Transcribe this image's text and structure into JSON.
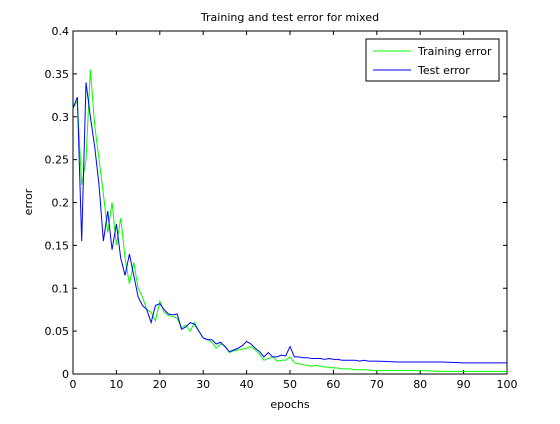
{
  "chart_data": {
    "type": "line",
    "title": "Training and test error for mixed",
    "xlabel": "epochs",
    "ylabel": "error",
    "xlim": [
      0,
      100
    ],
    "ylim": [
      0,
      0.4
    ],
    "xticks": [
      0,
      10,
      20,
      30,
      40,
      50,
      60,
      70,
      80,
      90,
      100
    ],
    "yticks": [
      0,
      0.05,
      0.1,
      0.15,
      0.2,
      0.25,
      0.3,
      0.35,
      0.4
    ],
    "xtick_labels": [
      "0",
      "10",
      "20",
      "30",
      "40",
      "50",
      "60",
      "70",
      "80",
      "90",
      "100"
    ],
    "ytick_labels": [
      "0",
      "0.05",
      "0.1",
      "0.15",
      "0.2",
      "0.25",
      "0.3",
      "0.35",
      "0.4"
    ],
    "grid": false,
    "legend_position": "top-right",
    "series": [
      {
        "name": "Training error",
        "color": "#00ff00",
        "x": [
          0,
          1,
          2,
          3,
          4,
          5,
          6,
          7,
          8,
          9,
          10,
          11,
          12,
          13,
          14,
          15,
          16,
          17,
          18,
          19,
          20,
          21,
          22,
          23,
          24,
          25,
          26,
          27,
          28,
          29,
          30,
          31,
          32,
          33,
          34,
          35,
          36,
          37,
          38,
          39,
          40,
          41,
          42,
          43,
          44,
          45,
          46,
          47,
          48,
          49,
          50,
          51,
          52,
          53,
          54,
          55,
          56,
          57,
          58,
          59,
          60,
          61,
          62,
          63,
          64,
          65,
          66,
          67,
          68,
          69,
          70,
          75,
          80,
          85,
          90,
          95,
          100
        ],
        "values": [
          0.31,
          0.318,
          0.22,
          0.25,
          0.355,
          0.29,
          0.25,
          0.21,
          0.165,
          0.2,
          0.15,
          0.182,
          0.135,
          0.105,
          0.13,
          0.1,
          0.09,
          0.075,
          0.072,
          0.062,
          0.085,
          0.072,
          0.068,
          0.067,
          0.065,
          0.054,
          0.057,
          0.05,
          0.06,
          0.05,
          0.042,
          0.04,
          0.037,
          0.03,
          0.035,
          0.033,
          0.025,
          0.027,
          0.028,
          0.029,
          0.03,
          0.032,
          0.028,
          0.023,
          0.016,
          0.018,
          0.02,
          0.015,
          0.016,
          0.016,
          0.02,
          0.013,
          0.012,
          0.011,
          0.01,
          0.009,
          0.01,
          0.009,
          0.008,
          0.008,
          0.007,
          0.007,
          0.006,
          0.006,
          0.006,
          0.005,
          0.005,
          0.005,
          0.005,
          0.004,
          0.004,
          0.004,
          0.004,
          0.003,
          0.003,
          0.003,
          0.003
        ]
      },
      {
        "name": "Test error",
        "color": "#0000ff",
        "x": [
          0,
          1,
          2,
          3,
          4,
          5,
          6,
          7,
          8,
          9,
          10,
          11,
          12,
          13,
          14,
          15,
          16,
          17,
          18,
          19,
          20,
          21,
          22,
          23,
          24,
          25,
          26,
          27,
          28,
          29,
          30,
          31,
          32,
          33,
          34,
          35,
          36,
          37,
          38,
          39,
          40,
          41,
          42,
          43,
          44,
          45,
          46,
          47,
          48,
          49,
          50,
          51,
          52,
          53,
          54,
          55,
          56,
          57,
          58,
          59,
          60,
          61,
          62,
          63,
          64,
          65,
          66,
          67,
          68,
          69,
          70,
          75,
          80,
          85,
          90,
          95,
          100
        ],
        "values": [
          0.31,
          0.323,
          0.155,
          0.34,
          0.3,
          0.265,
          0.22,
          0.155,
          0.19,
          0.145,
          0.175,
          0.135,
          0.115,
          0.14,
          0.115,
          0.09,
          0.08,
          0.075,
          0.06,
          0.08,
          0.082,
          0.075,
          0.07,
          0.069,
          0.07,
          0.052,
          0.055,
          0.06,
          0.058,
          0.05,
          0.042,
          0.04,
          0.04,
          0.035,
          0.037,
          0.032,
          0.026,
          0.028,
          0.03,
          0.033,
          0.038,
          0.035,
          0.03,
          0.026,
          0.02,
          0.025,
          0.02,
          0.02,
          0.022,
          0.021,
          0.032,
          0.02,
          0.02,
          0.019,
          0.019,
          0.018,
          0.018,
          0.018,
          0.017,
          0.018,
          0.017,
          0.017,
          0.016,
          0.016,
          0.016,
          0.016,
          0.015,
          0.016,
          0.015,
          0.015,
          0.015,
          0.014,
          0.014,
          0.014,
          0.013,
          0.013,
          0.013
        ]
      }
    ]
  }
}
